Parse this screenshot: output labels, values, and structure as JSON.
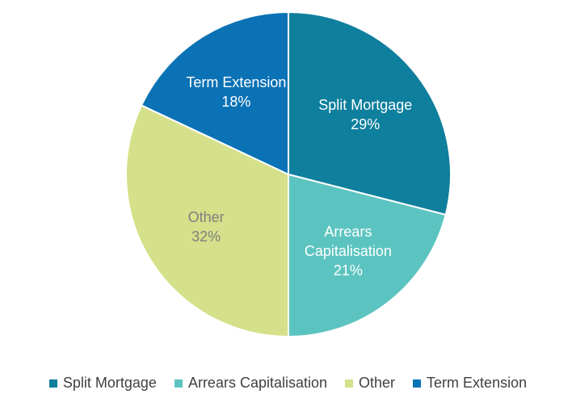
{
  "chart_data": {
    "type": "pie",
    "categories": [
      "Split Mortgage",
      "Arrears Capitalisation",
      "Other",
      "Term Extension"
    ],
    "values": [
      29,
      21,
      32,
      18
    ],
    "value_labels": [
      "29%",
      "21%",
      "32%",
      "18%"
    ],
    "colors": [
      "#0e7f9c",
      "#5cc4c0",
      "#d5e08a",
      "#0b72b5"
    ],
    "label_colors": [
      "#ffffff",
      "#ffffff",
      "#7f7f7f",
      "#ffffff"
    ],
    "legend": "bottom"
  }
}
